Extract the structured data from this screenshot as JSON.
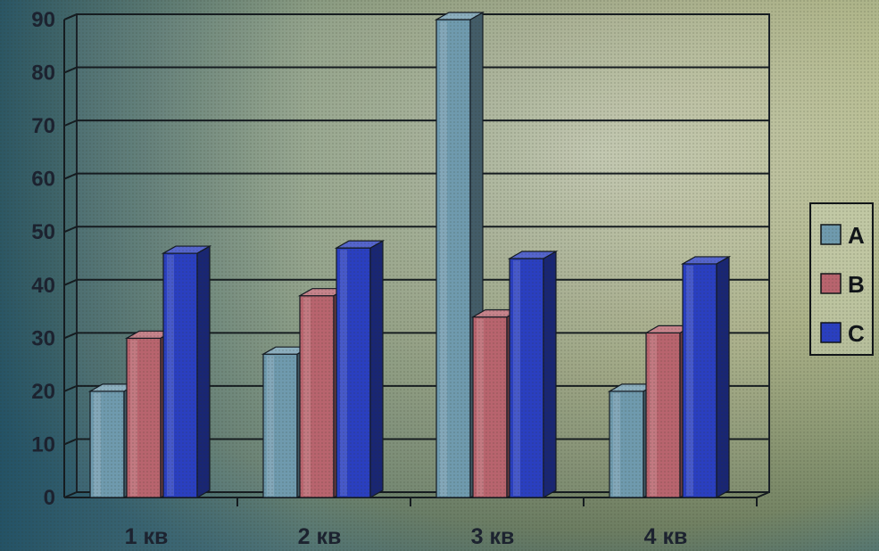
{
  "chart_data": {
    "type": "bar",
    "style": "3d-clustered-column",
    "categories": [
      "1 кв",
      "2 кв",
      "3 кв",
      "4 кв"
    ],
    "series": [
      {
        "name": "A",
        "values": [
          20,
          27,
          90,
          20
        ],
        "color": "#6f9aae"
      },
      {
        "name": "B",
        "values": [
          30,
          38,
          34,
          31
        ],
        "color": "#b8646e"
      },
      {
        "name": "C",
        "values": [
          46,
          47,
          45,
          44
        ],
        "color": "#2a3fc0"
      }
    ],
    "ylim": [
      0,
      90
    ],
    "yticks": [
      "0",
      "10",
      "20",
      "30",
      "40",
      "50",
      "60",
      "70",
      "80",
      "90"
    ],
    "grid": true,
    "legend": "right",
    "title": "",
    "xlabel": "",
    "ylabel": ""
  }
}
